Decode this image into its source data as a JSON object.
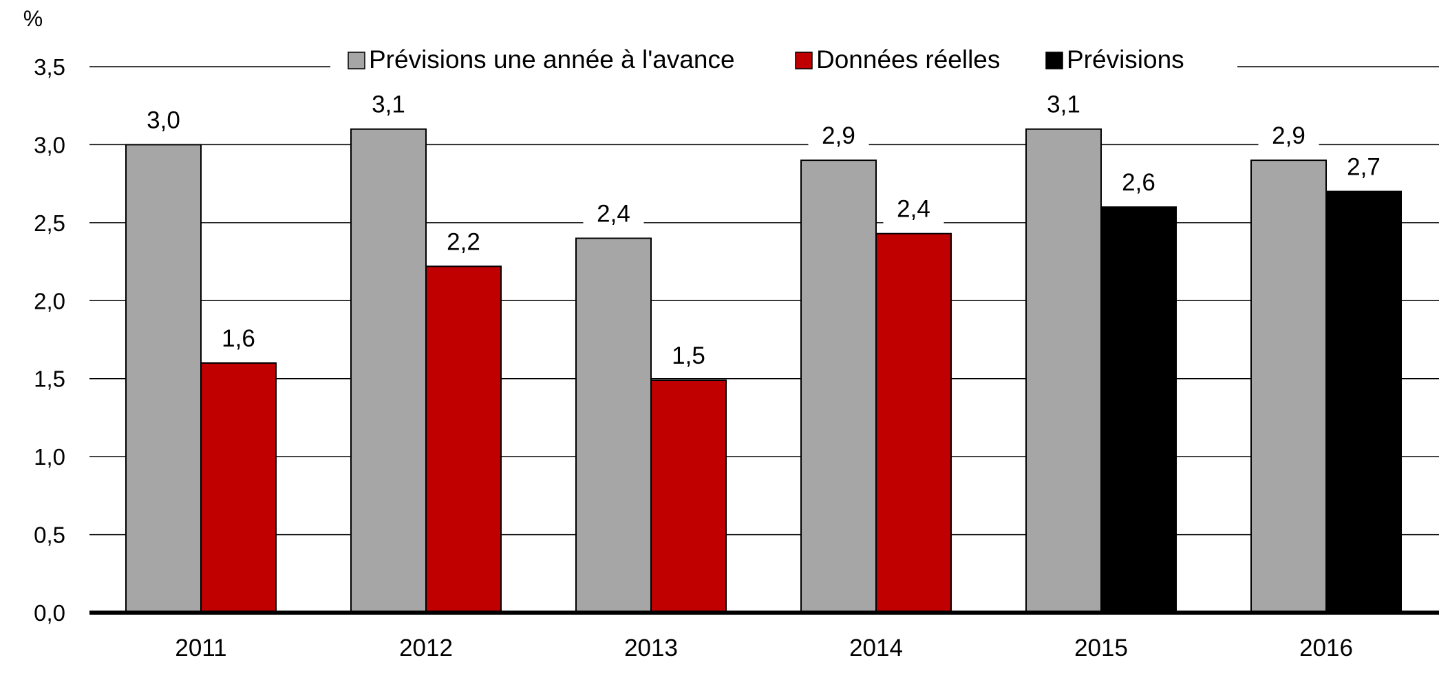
{
  "chart_data": {
    "type": "bar",
    "y_unit": "%",
    "categories": [
      "2011",
      "2012",
      "2013",
      "2014",
      "2015",
      "2016"
    ],
    "ylim": [
      0,
      3.5
    ],
    "yticks": [
      0,
      0.5,
      1,
      1.5,
      2,
      2.5,
      3,
      3.5
    ],
    "ytick_labels": [
      "0,0",
      "0,5",
      "1,0",
      "1,5",
      "2,0",
      "2,5",
      "3,0",
      "3,5"
    ],
    "grid": true,
    "legend_position": "top",
    "series": [
      {
        "name": "Prévisions une année à l'avance",
        "color": "#a6a6a6",
        "values": [
          3.0,
          3.1,
          2.4,
          2.9,
          3.1,
          2.9
        ],
        "labels": [
          "3,0",
          "3,1",
          "2,4",
          "2,9",
          "3,1",
          "2,9"
        ]
      },
      {
        "name": "Données réelles",
        "color": "#c00000",
        "values": [
          1.6,
          2.22,
          1.49,
          2.43,
          null,
          null
        ],
        "labels": [
          "1,6",
          "2,2",
          "1,5",
          "2,4",
          null,
          null
        ]
      },
      {
        "name": "Prévisions",
        "color": "#000000",
        "values": [
          null,
          null,
          null,
          null,
          2.6,
          2.7
        ],
        "labels": [
          null,
          null,
          null,
          null,
          "2,6",
          "2,7"
        ]
      }
    ]
  }
}
